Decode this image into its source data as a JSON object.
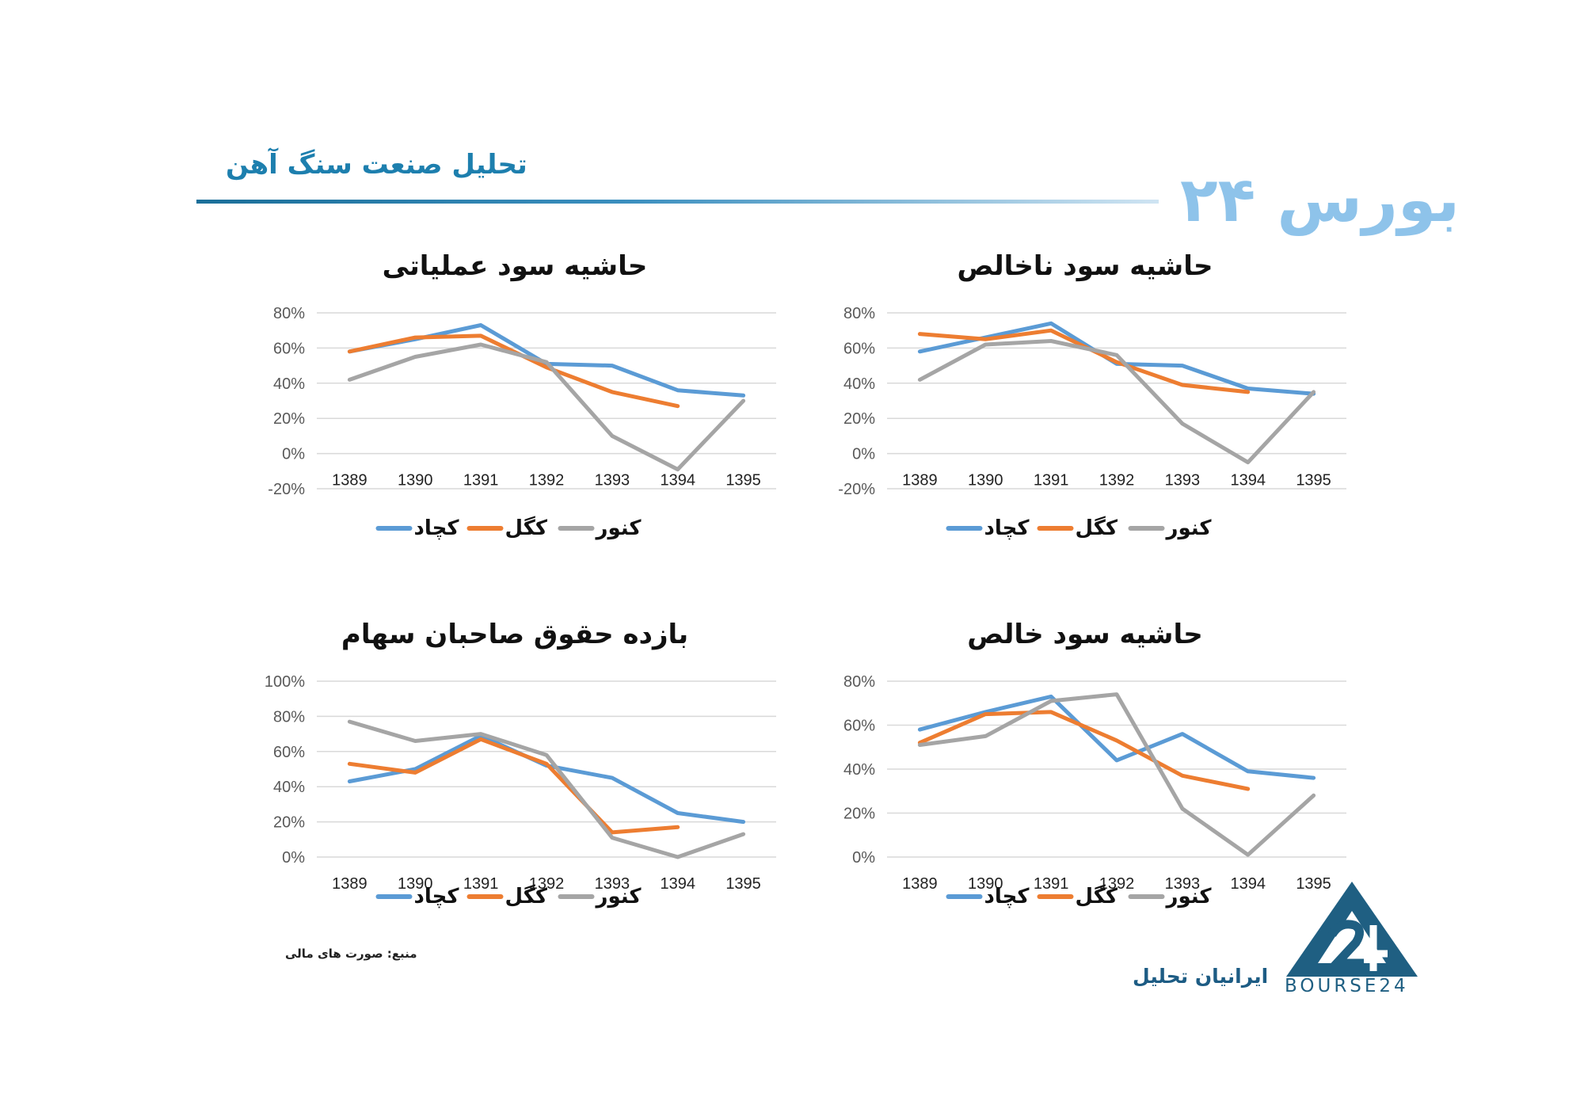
{
  "header": {
    "title": "تحلیل صنعت سنگ آهن",
    "brand": "بورس ۲۴"
  },
  "colors": {
    "kechad": "#5b9bd5",
    "kegol": "#ed7d31",
    "kenor": "#a5a5a5",
    "header_blue": "#1d7fae"
  },
  "footer": {
    "source": "منبع: صورت های مالی",
    "company": "ایرانیان تحلیل",
    "logo_text": "BOURSE24"
  },
  "chart_data": [
    {
      "type": "line",
      "title": "حاشیه سود ناخالص",
      "categories": [
        "1389",
        "1390",
        "1391",
        "1392",
        "1393",
        "1394",
        "1395"
      ],
      "y_ticks": [
        "-20%",
        "0%",
        "20%",
        "40%",
        "60%",
        "80%"
      ],
      "ylim": [
        -20,
        80
      ],
      "legend_position": "bottom",
      "grid": true,
      "series": [
        {
          "name": "کچاد",
          "color": "#5b9bd5",
          "values": [
            58,
            66,
            74,
            51,
            50,
            37,
            34
          ]
        },
        {
          "name": "کگل",
          "color": "#ed7d31",
          "values": [
            68,
            65,
            70,
            52,
            39,
            35,
            null
          ]
        },
        {
          "name": "کنور",
          "color": "#a5a5a5",
          "values": [
            42,
            62,
            64,
            56,
            17,
            -5,
            35
          ]
        }
      ]
    },
    {
      "type": "line",
      "title": "حاشیه سود عملیاتی",
      "categories": [
        "1389",
        "1390",
        "1391",
        "1392",
        "1393",
        "1394",
        "1395"
      ],
      "y_ticks": [
        "-20%",
        "0%",
        "20%",
        "40%",
        "60%",
        "80%"
      ],
      "ylim": [
        -20,
        80
      ],
      "legend_position": "bottom",
      "grid": true,
      "series": [
        {
          "name": "کچاد",
          "color": "#5b9bd5",
          "values": [
            58,
            65,
            73,
            51,
            50,
            36,
            33
          ]
        },
        {
          "name": "کگل",
          "color": "#ed7d31",
          "values": [
            58,
            66,
            67,
            49,
            35,
            27,
            null
          ]
        },
        {
          "name": "کنور",
          "color": "#a5a5a5",
          "values": [
            42,
            55,
            62,
            52,
            10,
            -9,
            30
          ]
        }
      ]
    },
    {
      "type": "line",
      "title": "حاشیه سود خالص",
      "categories": [
        "1389",
        "1390",
        "1391",
        "1392",
        "1393",
        "1394",
        "1395"
      ],
      "y_ticks": [
        "0%",
        "20%",
        "40%",
        "60%",
        "80%"
      ],
      "ylim": [
        0,
        80
      ],
      "legend_position": "bottom",
      "grid": true,
      "series": [
        {
          "name": "کچاد",
          "color": "#5b9bd5",
          "values": [
            58,
            66,
            73,
            44,
            56,
            39,
            36
          ]
        },
        {
          "name": "کگل",
          "color": "#ed7d31",
          "values": [
            52,
            65,
            66,
            53,
            37,
            31,
            null
          ]
        },
        {
          "name": "کنور",
          "color": "#a5a5a5",
          "values": [
            51,
            55,
            71,
            74,
            22,
            1,
            28
          ]
        }
      ]
    },
    {
      "type": "line",
      "title": "بازده حقوق صاحبان سهام",
      "categories": [
        "1389",
        "1390",
        "1391",
        "1392",
        "1393",
        "1394",
        "1395"
      ],
      "y_ticks": [
        "0%",
        "20%",
        "40%",
        "60%",
        "80%",
        "100%"
      ],
      "ylim": [
        0,
        100
      ],
      "legend_position": "bottom",
      "grid": true,
      "series": [
        {
          "name": "کچاد",
          "color": "#5b9bd5",
          "values": [
            43,
            50,
            69,
            52,
            45,
            25,
            20
          ]
        },
        {
          "name": "کگل",
          "color": "#ed7d31",
          "values": [
            53,
            48,
            67,
            53,
            14,
            17,
            null
          ]
        },
        {
          "name": "کنور",
          "color": "#a5a5a5",
          "values": [
            77,
            66,
            70,
            58,
            11,
            0,
            13
          ]
        }
      ]
    }
  ]
}
